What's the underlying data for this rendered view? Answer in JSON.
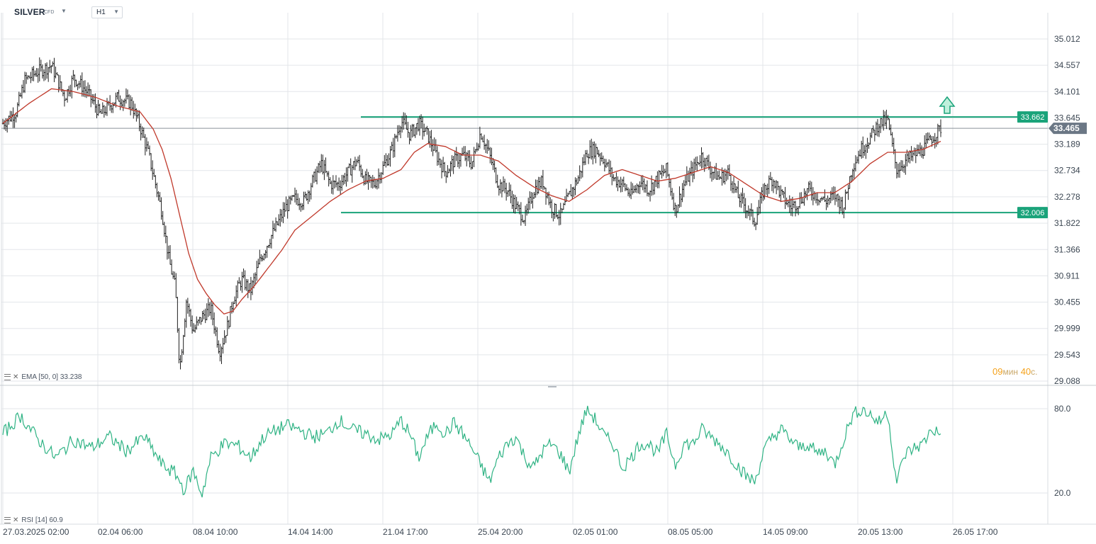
{
  "header": {
    "symbol": "SILVER",
    "symbol_type": "CFD",
    "timeframe": "H1"
  },
  "legends": {
    "ema_label": "EMA [50, 0]",
    "ema_value": "33.238",
    "rsi_label": "RSI [14]",
    "rsi_value": "60.9"
  },
  "countdown": {
    "minutes": "09",
    "minutes_unit": "мин",
    "seconds": "40",
    "seconds_unit": "с."
  },
  "colors": {
    "candles": "#1f1f1f",
    "ema": "#c0392b",
    "levels": "#1aa37a",
    "rsi": "#2fb384",
    "price_tag": "#6b7785",
    "grid": "#e3e6ea"
  },
  "chart_data": [
    {
      "type": "candlestick",
      "title": "",
      "y_ticks": [
        "35.012",
        "34.557",
        "34.101",
        "33.645",
        "33.189",
        "32.734",
        "32.278",
        "31.822",
        "31.366",
        "30.911",
        "30.455",
        "29.999",
        "29.543",
        "29.088"
      ],
      "ylim": [
        29.088,
        35.012
      ],
      "x_ticks": [
        "27.03.2025  02:00",
        "02.04  06:00",
        "08.04  10:00",
        "14.04  14:00",
        "21.04  17:00",
        "25.04  20:00",
        "02.05  01:00",
        "08.05  05:00",
        "14.05  09:00",
        "20.05  13:00",
        "26.05  17:00"
      ],
      "current_price": "33.465",
      "levels": [
        {
          "name": "resistance",
          "label": "33.662",
          "value": 33.662
        },
        {
          "name": "support",
          "label": "32.006",
          "value": 32.006
        }
      ],
      "annotation": "up-arrow",
      "path_points": [
        [
          0,
          33.55
        ],
        [
          3,
          33.75
        ],
        [
          5,
          34.3
        ],
        [
          8,
          34.45
        ],
        [
          11,
          34.55
        ],
        [
          14,
          34.0
        ],
        [
          16,
          34.35
        ],
        [
          19,
          34.1
        ],
        [
          22,
          33.7
        ],
        [
          26,
          34.0
        ],
        [
          29,
          33.9
        ],
        [
          31,
          33.5
        ],
        [
          33,
          33.0
        ],
        [
          34.5,
          32.5
        ],
        [
          36,
          32.0
        ],
        [
          37.5,
          31.2
        ],
        [
          39,
          30.7
        ],
        [
          40,
          29.3
        ],
        [
          41.5,
          30.5
        ],
        [
          43,
          29.95
        ],
        [
          45,
          30.2
        ],
        [
          47,
          30.35
        ],
        [
          49,
          29.6
        ],
        [
          51,
          30.1
        ],
        [
          52,
          30.5
        ],
        [
          54,
          30.85
        ],
        [
          56,
          30.65
        ],
        [
          58,
          31.15
        ],
        [
          60,
          31.5
        ],
        [
          62,
          31.8
        ],
        [
          64,
          32.1
        ],
        [
          66,
          32.25
        ],
        [
          68,
          32.2
        ],
        [
          70,
          32.55
        ],
        [
          72,
          32.85
        ],
        [
          74,
          32.5
        ],
        [
          76,
          32.5
        ],
        [
          78,
          32.7
        ],
        [
          80,
          32.9
        ],
        [
          82,
          32.55
        ],
        [
          84,
          32.5
        ],
        [
          86,
          32.8
        ],
        [
          88,
          33.1
        ],
        [
          90,
          33.6
        ],
        [
          92,
          33.35
        ],
        [
          94,
          33.55
        ],
        [
          96,
          33.35
        ],
        [
          98,
          33.0
        ],
        [
          100,
          32.7
        ],
        [
          102,
          32.9
        ],
        [
          104,
          33.0
        ],
        [
          106,
          32.85
        ],
        [
          108,
          33.4
        ],
        [
          110,
          33.0
        ],
        [
          112,
          32.5
        ],
        [
          114,
          32.4
        ],
        [
          116,
          32.1
        ],
        [
          118,
          31.9
        ],
        [
          120,
          32.4
        ],
        [
          122,
          32.55
        ],
        [
          124,
          32.1
        ],
        [
          126,
          31.95
        ],
        [
          128,
          32.3
        ],
        [
          130,
          32.6
        ],
        [
          132,
          33.05
        ],
        [
          134,
          33.1
        ],
        [
          136,
          32.9
        ],
        [
          138,
          32.6
        ],
        [
          140,
          32.5
        ],
        [
          142,
          32.3
        ],
        [
          144,
          32.55
        ],
        [
          146,
          32.4
        ],
        [
          148,
          32.6
        ],
        [
          150,
          32.75
        ],
        [
          152,
          32.05
        ],
        [
          154,
          32.5
        ],
        [
          156,
          32.75
        ],
        [
          158,
          33.0
        ],
        [
          160,
          32.75
        ],
        [
          162,
          32.6
        ],
        [
          164,
          32.7
        ],
        [
          166,
          32.3
        ],
        [
          168,
          32.1
        ],
        [
          170,
          31.85
        ],
        [
          172,
          32.4
        ],
        [
          174,
          32.6
        ],
        [
          176,
          32.3
        ],
        [
          178,
          32.1
        ],
        [
          180,
          32.2
        ],
        [
          182,
          32.4
        ],
        [
          184,
          32.3
        ],
        [
          186,
          32.2
        ],
        [
          188,
          32.3
        ],
        [
          190,
          32.1
        ],
        [
          192,
          32.8
        ],
        [
          194,
          33.1
        ],
        [
          196,
          33.3
        ],
        [
          198,
          33.55
        ],
        [
          200,
          33.6
        ],
        [
          202,
          32.75
        ],
        [
          204,
          32.9
        ],
        [
          206,
          33.0
        ],
        [
          208,
          33.1
        ],
        [
          210,
          33.3
        ],
        [
          212,
          33.465
        ]
      ],
      "ema_points": [
        [
          0,
          33.55
        ],
        [
          6,
          33.9
        ],
        [
          11,
          34.15
        ],
        [
          16,
          34.1
        ],
        [
          21,
          34.0
        ],
        [
          26,
          33.85
        ],
        [
          31,
          33.75
        ],
        [
          34,
          33.45
        ],
        [
          36,
          33.1
        ],
        [
          38,
          32.6
        ],
        [
          40,
          31.95
        ],
        [
          42,
          31.3
        ],
        [
          44,
          30.85
        ],
        [
          46,
          30.6
        ],
        [
          48,
          30.4
        ],
        [
          50,
          30.25
        ],
        [
          52,
          30.3
        ],
        [
          54,
          30.5
        ],
        [
          57,
          30.75
        ],
        [
          60,
          31.05
        ],
        [
          63,
          31.35
        ],
        [
          66,
          31.7
        ],
        [
          70,
          31.95
        ],
        [
          74,
          32.2
        ],
        [
          78,
          32.4
        ],
        [
          82,
          32.55
        ],
        [
          86,
          32.6
        ],
        [
          90,
          32.75
        ],
        [
          93,
          33.05
        ],
        [
          96,
          33.2
        ],
        [
          100,
          33.15
        ],
        [
          104,
          33.0
        ],
        [
          108,
          33.0
        ],
        [
          112,
          32.9
        ],
        [
          116,
          32.65
        ],
        [
          120,
          32.45
        ],
        [
          124,
          32.3
        ],
        [
          128,
          32.2
        ],
        [
          132,
          32.4
        ],
        [
          136,
          32.65
        ],
        [
          140,
          32.75
        ],
        [
          144,
          32.65
        ],
        [
          148,
          32.55
        ],
        [
          152,
          32.6
        ],
        [
          156,
          32.7
        ],
        [
          160,
          32.8
        ],
        [
          164,
          32.7
        ],
        [
          168,
          32.5
        ],
        [
          172,
          32.3
        ],
        [
          176,
          32.2
        ],
        [
          180,
          32.25
        ],
        [
          184,
          32.35
        ],
        [
          188,
          32.35
        ],
        [
          192,
          32.55
        ],
        [
          196,
          32.85
        ],
        [
          200,
          33.05
        ],
        [
          204,
          33.05
        ],
        [
          208,
          33.1
        ],
        [
          212,
          33.24
        ]
      ]
    },
    {
      "type": "line",
      "name": "RSI",
      "y_ticks": [
        "80.0",
        "20.0"
      ],
      "ylim": [
        13.0,
        84.5
      ],
      "points": [
        [
          0,
          62
        ],
        [
          4,
          75
        ],
        [
          8,
          58
        ],
        [
          12,
          45
        ],
        [
          16,
          58
        ],
        [
          20,
          52
        ],
        [
          24,
          60
        ],
        [
          28,
          50
        ],
        [
          32,
          60
        ],
        [
          36,
          40
        ],
        [
          39,
          34
        ],
        [
          41,
          22
        ],
        [
          43,
          36
        ],
        [
          45,
          19
        ],
        [
          47,
          45
        ],
        [
          50,
          55
        ],
        [
          53,
          54
        ],
        [
          56,
          45
        ],
        [
          59,
          60
        ],
        [
          62,
          65
        ],
        [
          64,
          68
        ],
        [
          67,
          65
        ],
        [
          70,
          60
        ],
        [
          73,
          62
        ],
        [
          76,
          72
        ],
        [
          79,
          65
        ],
        [
          82,
          62
        ],
        [
          85,
          58
        ],
        [
          88,
          62
        ],
        [
          90,
          72
        ],
        [
          92,
          62
        ],
        [
          94,
          45
        ],
        [
          96,
          60
        ],
        [
          98,
          70
        ],
        [
          100,
          62
        ],
        [
          102,
          70
        ],
        [
          104,
          62
        ],
        [
          106,
          52
        ],
        [
          108,
          40
        ],
        [
          110,
          28
        ],
        [
          112,
          45
        ],
        [
          114,
          55
        ],
        [
          116,
          60
        ],
        [
          118,
          45
        ],
        [
          120,
          38
        ],
        [
          122,
          50
        ],
        [
          124,
          55
        ],
        [
          126,
          48
        ],
        [
          128,
          35
        ],
        [
          130,
          60
        ],
        [
          132,
          80
        ],
        [
          134,
          72
        ],
        [
          136,
          60
        ],
        [
          138,
          55
        ],
        [
          140,
          38
        ],
        [
          142,
          45
        ],
        [
          144,
          55
        ],
        [
          146,
          55
        ],
        [
          148,
          48
        ],
        [
          150,
          62
        ],
        [
          152,
          40
        ],
        [
          154,
          55
        ],
        [
          156,
          55
        ],
        [
          158,
          65
        ],
        [
          160,
          60
        ],
        [
          162,
          55
        ],
        [
          164,
          48
        ],
        [
          166,
          40
        ],
        [
          168,
          32
        ],
        [
          170,
          28
        ],
        [
          172,
          50
        ],
        [
          174,
          60
        ],
        [
          176,
          65
        ],
        [
          178,
          58
        ],
        [
          180,
          52
        ],
        [
          182,
          55
        ],
        [
          184,
          48
        ],
        [
          186,
          50
        ],
        [
          188,
          40
        ],
        [
          190,
          58
        ],
        [
          192,
          75
        ],
        [
          194,
          80
        ],
        [
          196,
          76
        ],
        [
          198,
          70
        ],
        [
          200,
          78
        ],
        [
          202,
          28
        ],
        [
          204,
          48
        ],
        [
          206,
          52
        ],
        [
          208,
          55
        ],
        [
          210,
          66
        ],
        [
          212,
          61
        ]
      ]
    }
  ]
}
